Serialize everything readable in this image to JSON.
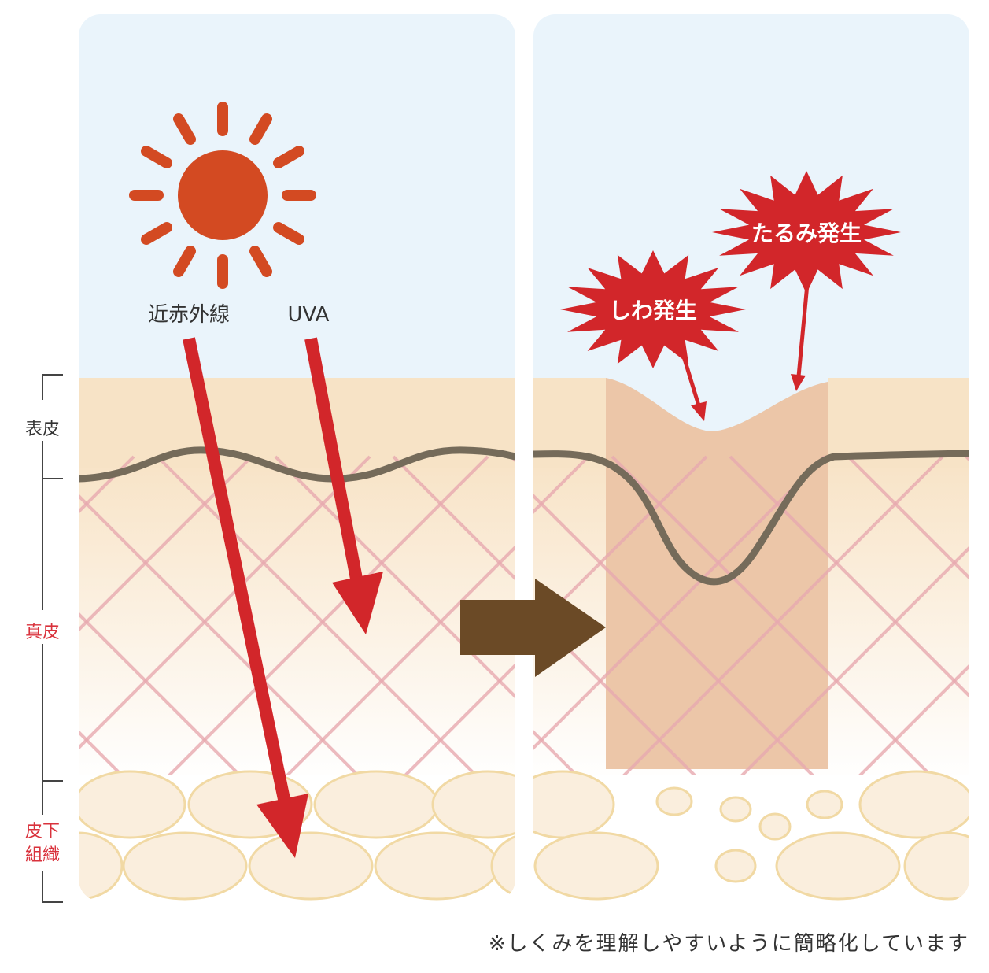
{
  "labels": {
    "nir": "近赤外線",
    "uva": "UVA",
    "wrinkle": "しわ発生",
    "sagging": "たるみ発生"
  },
  "layers": {
    "epidermis": "表皮",
    "dermis": "真皮",
    "subcutis_line1": "皮下",
    "subcutis_line2": "組織"
  },
  "note": "※しくみを理解しやすいように簡略化しています",
  "colors": {
    "sky": "#eaf4fb",
    "epidermis": "#f7e3c6",
    "sun": "#d34a22",
    "ray_arrow": "#d2262a",
    "transition_arrow": "#6b4a26",
    "basement_line": "#756b5a",
    "collagen": "#e8aab0",
    "damaged_zone": "#ecc6a8",
    "fat_cell_fill": "#faeedd",
    "fat_cell_stroke": "#f1d9a4",
    "dermis_label": "#d9323c",
    "epidermis_label": "#333333"
  }
}
